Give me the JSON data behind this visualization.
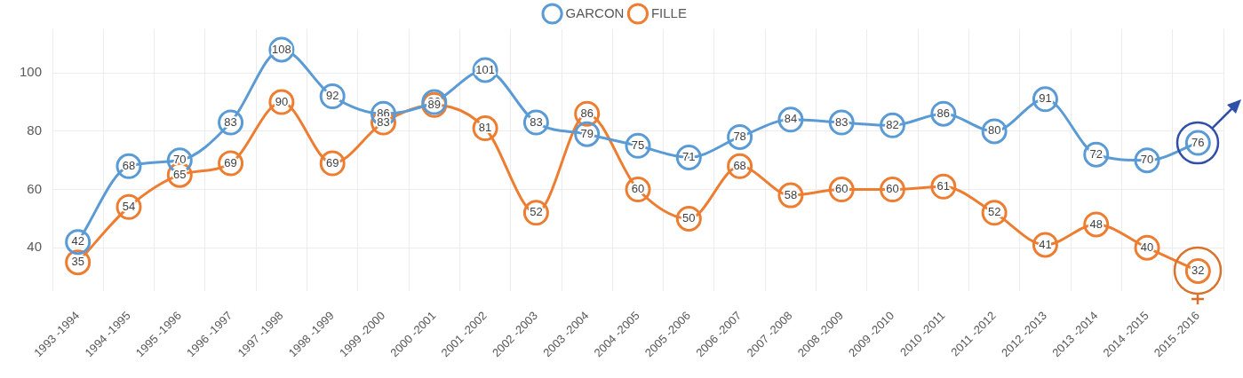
{
  "chart_data": {
    "type": "line",
    "categories": [
      "1993 -1994",
      "1994 -1995",
      "1995 -1996",
      "1996 -1997",
      "1997 -1998",
      "1998 -1999",
      "1999 -2000",
      "2000 -2001",
      "2001 -2002",
      "2002 -2003",
      "2003 -2004",
      "2004 -2005",
      "2005 -2006",
      "2006 -2007",
      "2007 -2008",
      "2008 -2009",
      "2009 -2010",
      "2010 -2011",
      "2011 -2012",
      "2012 -2013",
      "2013 -2014",
      "2014 -2015",
      "2015 -2016"
    ],
    "series": [
      {
        "name": "GARCON",
        "color": "#5b9bd5",
        "values": [
          42,
          68,
          70,
          83,
          108,
          92,
          86,
          90,
          101,
          83,
          79,
          75,
          71,
          78,
          84,
          83,
          82,
          86,
          80,
          91,
          72,
          70,
          76
        ]
      },
      {
        "name": "FILLE",
        "color": "#ed7d31",
        "values": [
          35,
          54,
          65,
          69,
          90,
          69,
          83,
          89,
          81,
          52,
          86,
          60,
          50,
          68,
          58,
          60,
          60,
          61,
          52,
          41,
          48,
          40,
          32
        ]
      }
    ],
    "ylim": [
      25,
      115
    ],
    "yticks": [
      40,
      60,
      80,
      100
    ],
    "grid": true,
    "legend": "top",
    "marker": "circle",
    "line_style": "solid",
    "data_labels": true
  }
}
